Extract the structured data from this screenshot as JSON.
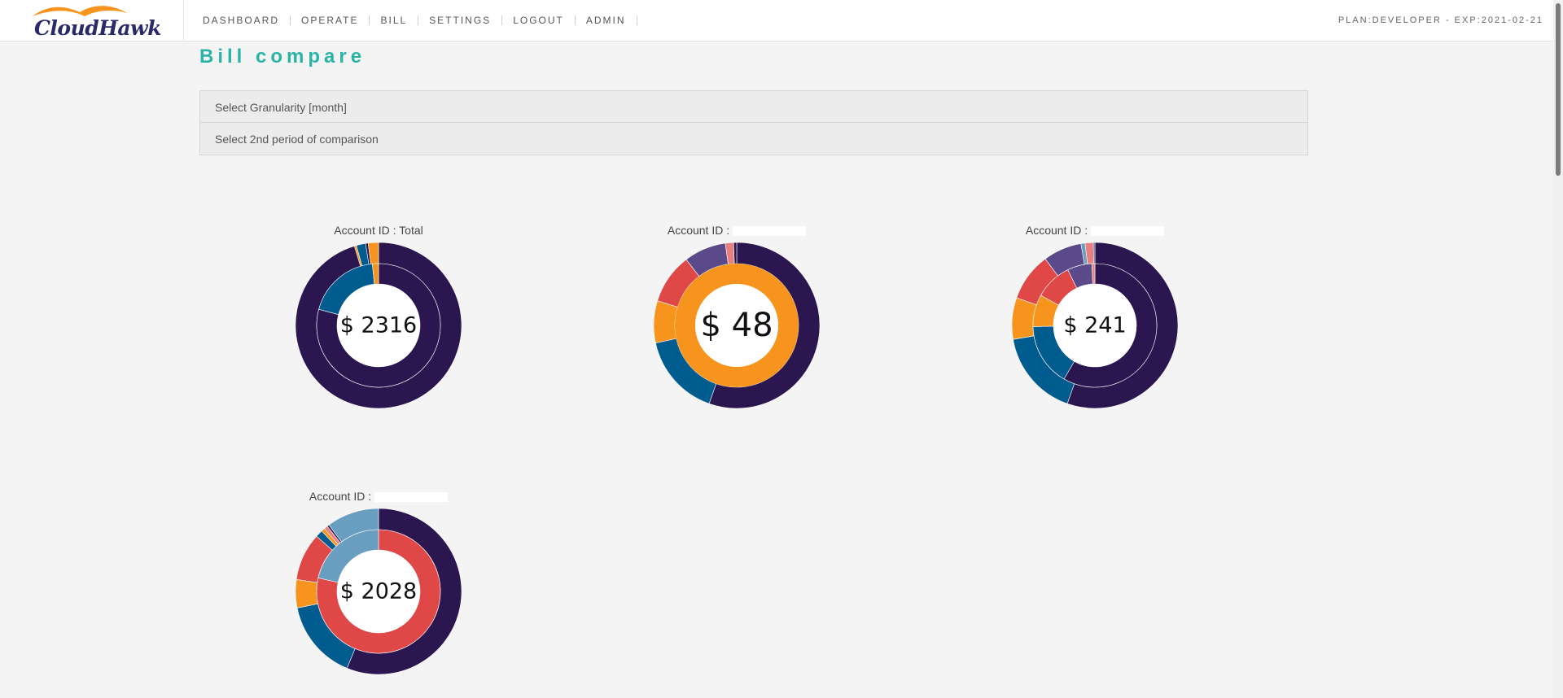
{
  "app": {
    "logo_text": "CloudHawk",
    "plan_info": "PLAN:DEVELOPER - EXP:2021-02-21"
  },
  "nav": {
    "items": [
      {
        "label": "DASHBOARD"
      },
      {
        "label": "OPERATE"
      },
      {
        "label": "BILL"
      },
      {
        "label": "SETTINGS"
      },
      {
        "label": "LOGOUT"
      },
      {
        "label": "ADMIN"
      }
    ]
  },
  "page": {
    "title": "Bill compare"
  },
  "accordion": {
    "granularity": "Select Granularity [month]",
    "second_period": "Select 2nd period of comparison"
  },
  "colors": {
    "dark_purple": "#2b1650",
    "blue": "#005b8f",
    "orange": "#f7941d",
    "red": "#e04848",
    "purple": "#5a4a8a",
    "pink": "#e88080",
    "light_blue": "#6a9ec0"
  },
  "chart_data": [
    {
      "type": "donut",
      "label": "Account ID : Total",
      "center_value": "$ 2316",
      "outer": [
        {
          "value": 95.3,
          "color": "#2b1650"
        },
        {
          "value": 0.4,
          "color": "#f7941d"
        },
        {
          "value": 1.8,
          "color": "#005b8f"
        },
        {
          "value": 0.5,
          "color": "#2b1650"
        },
        {
          "value": 2.0,
          "color": "#f7941d"
        }
      ],
      "inner": [
        {
          "value": 79.2,
          "color": "#2b1650"
        },
        {
          "value": 19.2,
          "color": "#005b8f"
        },
        {
          "value": 1.6,
          "color": "#f7941d"
        }
      ]
    },
    {
      "type": "donut",
      "label": "Account ID :",
      "center_value": "$ 48",
      "outer": [
        {
          "value": 55.4,
          "color": "#2b1650"
        },
        {
          "value": 16.2,
          "color": "#005b8f"
        },
        {
          "value": 8.2,
          "color": "#f7941d"
        },
        {
          "value": 9.8,
          "color": "#e04848"
        },
        {
          "value": 8.2,
          "color": "#5a4a8a"
        },
        {
          "value": 1.6,
          "color": "#e88080"
        },
        {
          "value": 0.6,
          "color": "#2b1650"
        }
      ],
      "inner": [
        {
          "value": 100,
          "color": "#f7941d"
        }
      ]
    },
    {
      "type": "donut",
      "label": "Account ID :",
      "center_value": "$ 241",
      "outer": [
        {
          "value": 55.4,
          "color": "#2b1650"
        },
        {
          "value": 16.9,
          "color": "#005b8f"
        },
        {
          "value": 8.1,
          "color": "#f7941d"
        },
        {
          "value": 9.4,
          "color": "#e04848"
        },
        {
          "value": 7.5,
          "color": "#5a4a8a"
        },
        {
          "value": 0.8,
          "color": "#6a9ec0"
        },
        {
          "value": 1.6,
          "color": "#e88080"
        },
        {
          "value": 0.3,
          "color": "#5a4a8a"
        }
      ],
      "inner": [
        {
          "value": 58.3,
          "color": "#2b1650"
        },
        {
          "value": 16.4,
          "color": "#005b8f"
        },
        {
          "value": 8.4,
          "color": "#f7941d"
        },
        {
          "value": 9.7,
          "color": "#e04848"
        },
        {
          "value": 6.4,
          "color": "#5a4a8a"
        },
        {
          "value": 0.8,
          "color": "#e88080"
        }
      ]
    },
    {
      "type": "donut",
      "label": "Account ID :",
      "center_value": "$ 2028",
      "outer": [
        {
          "value": 56.2,
          "color": "#2b1650"
        },
        {
          "value": 15.6,
          "color": "#005b8f"
        },
        {
          "value": 5.5,
          "color": "#f7941d"
        },
        {
          "value": 9.3,
          "color": "#e04848"
        },
        {
          "value": 1.4,
          "color": "#005b8f"
        },
        {
          "value": 0.7,
          "color": "#f7941d"
        },
        {
          "value": 0.7,
          "color": "#e88080"
        },
        {
          "value": 0.4,
          "color": "#2b1650"
        },
        {
          "value": 10.2,
          "color": "#6a9ec0"
        }
      ],
      "inner": [
        {
          "value": 78.5,
          "color": "#e04848"
        },
        {
          "value": 21.5,
          "color": "#6a9ec0"
        }
      ]
    }
  ]
}
